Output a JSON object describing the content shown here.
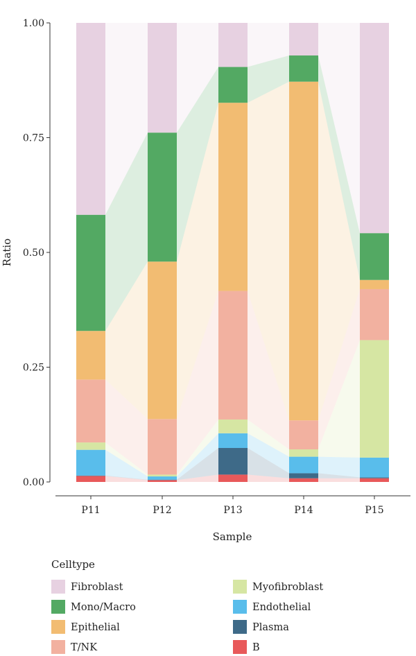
{
  "chart_data": {
    "type": "bar",
    "subtype": "stacked-100-percent-alluvial",
    "title": "",
    "xlabel": "Sample",
    "ylabel": "Ratio",
    "ylim": [
      0,
      1
    ],
    "yticks": [
      "0.00",
      "0.25",
      "0.50",
      "0.75",
      "1.00"
    ],
    "categories": [
      "P11",
      "P12",
      "P13",
      "P14",
      "P15"
    ],
    "legend_title": "Celltype",
    "legend_position": "bottom",
    "series": [
      {
        "name": "B",
        "color": "#E8595A",
        "values": [
          0.013,
          0.004,
          0.016,
          0.008,
          0.008
        ]
      },
      {
        "name": "Plasma",
        "color": "#3E6A88",
        "values": [
          0.001,
          0.001,
          0.058,
          0.011,
          0.002
        ]
      },
      {
        "name": "Endothelial",
        "color": "#59BDEB",
        "values": [
          0.056,
          0.007,
          0.032,
          0.036,
          0.043
        ]
      },
      {
        "name": "Myofibroblast",
        "color": "#D6E6A3",
        "values": [
          0.016,
          0.004,
          0.03,
          0.016,
          0.256
        ]
      },
      {
        "name": "T/NK",
        "color": "#F2B1A0",
        "values": [
          0.137,
          0.121,
          0.28,
          0.063,
          0.111
        ]
      },
      {
        "name": "Epithelial",
        "color": "#F2BC72",
        "values": [
          0.106,
          0.343,
          0.41,
          0.738,
          0.02
        ]
      },
      {
        "name": "Mono/Macro",
        "color": "#53A963",
        "values": [
          0.253,
          0.281,
          0.078,
          0.057,
          0.102
        ]
      },
      {
        "name": "Fibroblast",
        "color": "#E7D1E1",
        "values": [
          0.418,
          0.239,
          0.096,
          0.071,
          0.458
        ]
      }
    ],
    "legend_order": [
      "Fibroblast",
      "Mono/Macro",
      "Epithelial",
      "T/NK",
      "Myofibroblast",
      "Endothelial",
      "Plasma",
      "B"
    ],
    "grid": false
  }
}
